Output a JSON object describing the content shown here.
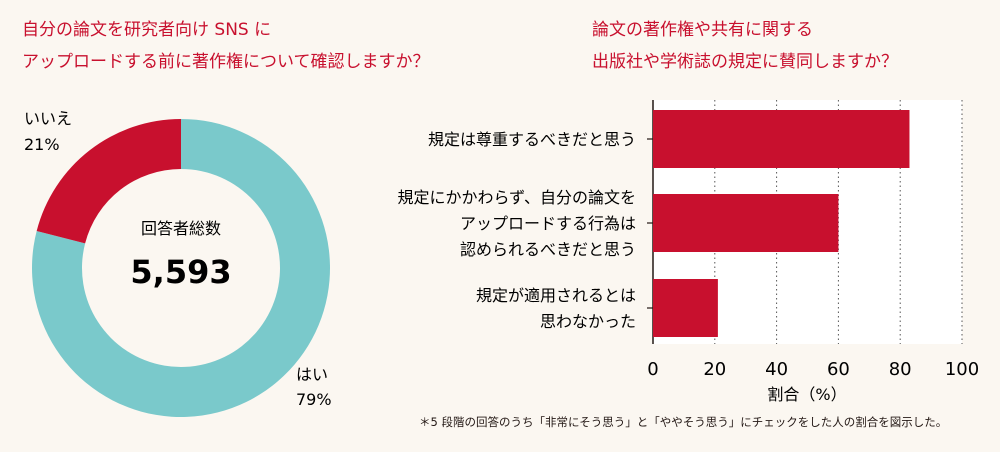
{
  "chart_data": [
    {
      "type": "pie",
      "title_lines": [
        "自分の論文を研究者向け SNS に",
        "アップロードする前に著作権について確認しますか？"
      ],
      "center_label": "回答者総数",
      "center_value": "5,593",
      "slices": [
        {
          "label": "はい",
          "value": 79,
          "value_label": "79%",
          "color": "#7ac9cb"
        },
        {
          "label": "いいえ",
          "value": 21,
          "value_label": "21%",
          "color": "#c8102e"
        }
      ]
    },
    {
      "type": "bar",
      "orientation": "horizontal",
      "title_lines": [
        "論文の著作権や共有に関する",
        "出版社や学術誌の規定に賛同しますか？"
      ],
      "categories": [
        [
          "規定は尊重するべきだと思う"
        ],
        [
          "規定にかかわらず、自分の論文を",
          "アップロードする行為は",
          "認められるべきだと思う"
        ],
        [
          "規定が適用されるとは",
          "思わなかった"
        ]
      ],
      "values": [
        83,
        60,
        21
      ],
      "bar_color": "#c8102e",
      "xlabel": "割合（%）",
      "xlim": [
        0,
        100
      ],
      "xticks": [
        "0",
        "20",
        "40",
        "60",
        "80",
        "100"
      ],
      "grid": "vertical-dotted"
    }
  ],
  "footnote": "＊5 段階の回答のうち「非常にそう思う」と「ややそう思う」にチェックをした人の割合を図示した。"
}
